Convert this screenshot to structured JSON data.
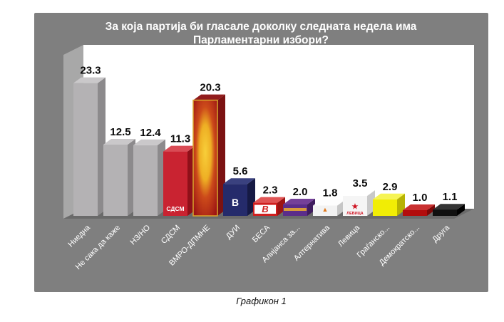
{
  "page": {
    "caption": "Графикон 1"
  },
  "chart_data": {
    "type": "bar",
    "style": "3d-column-survey",
    "title": "За која партија би гласале доколку следната недела има Парламентарни избори?",
    "title_lines": [
      "За која партија би гласале доколку следната недела има",
      "Парламентарни избори?"
    ],
    "categories": [
      "Ниедна",
      "Не сака да каже",
      "НЗ/НО",
      "СДСМ",
      "ВМРО-ДПМНЕ",
      "ДУИ",
      "БЕСА",
      "Алијанса за...",
      "Алтернатива",
      "Левица",
      "Граѓанско...",
      "Демократско...",
      "Друга"
    ],
    "values": [
      23.3,
      12.5,
      12.4,
      11.3,
      20.3,
      5.6,
      2.3,
      2.0,
      1.8,
      3.5,
      2.9,
      1.0,
      1.1
    ],
    "ylim": [
      0,
      25
    ],
    "legend": "none",
    "gridlines": "off",
    "value_labels_shown": true,
    "colors": {
      "panel_background": "#7f7f7f",
      "plot_back_wall": "#ffffff",
      "plot_side_wall": "#a8a8a8",
      "plot_floor": "#6a6a6a",
      "title_text": "#ffffff",
      "value_label_text": "#0a0a0a",
      "category_label_text": "#ffffff",
      "caption_text": "#111111"
    },
    "bar_styles": [
      {
        "party": "Ниедна",
        "front": "#b4b2b4",
        "side": "#8c8a8c",
        "top": "#cac8ca"
      },
      {
        "party": "Не сака да каже",
        "front": "#b4b2b4",
        "side": "#8c8a8c",
        "top": "#cac8ca"
      },
      {
        "party": "НЗ/НО",
        "front": "#b4b2b4",
        "side": "#8c8a8c",
        "top": "#cac8ca"
      },
      {
        "party": "СДСМ",
        "front": "#c92331",
        "side": "#8f1019",
        "top": "#d94b55",
        "logo_text": "СДСМ",
        "logo_color": "#ffffff",
        "logo_size": 8.5,
        "logo_dy": 7
      },
      {
        "party": "ВМРО-ДПМНЕ",
        "front": "vmro",
        "side": "#7c1212",
        "top": "#911c1c",
        "border": "#d9a62b"
      },
      {
        "party": "ДУИ",
        "front": "#252b6b",
        "side": "#161a44",
        "top": "#3a417f",
        "logo_text": "B",
        "logo_color": "#ffffff",
        "logo_size": 14,
        "logo_dy": 14
      },
      {
        "party": "БЕСА",
        "front": "#cf1f1f",
        "side": "#9c1515",
        "top": "#e05555",
        "panel": "#ffffff",
        "logo_text": "B",
        "logo_color": "#cf1f1f",
        "logo_size": 13,
        "logo_italic": true,
        "logo_dy": 5
      },
      {
        "party": "Алијанса за...",
        "front": "#5b2d8a",
        "side": "#3f1c5e",
        "top": "#744099",
        "stripe": "#d79a3c"
      },
      {
        "party": "Алтернатива",
        "front": "#f2f2f2",
        "side": "#c6c6c6",
        "top": "#fdfdfd",
        "logo_text": "▲",
        "logo_color": "#e0791e",
        "logo_size": 9,
        "logo_dy": 6
      },
      {
        "party": "Левица",
        "front": "#f5f5f5",
        "side": "#c9c9c9",
        "top": "#ffffff",
        "logo_text": "★",
        "logo_color": "#cf1322",
        "logo_size": 10,
        "logo_dy": 10,
        "logo_text2": "ЛЕВИЦА"
      },
      {
        "party": "Граѓанско...",
        "front": "#f1ed05",
        "side": "#b7b303",
        "top": "#f6f454"
      },
      {
        "party": "Демократско...",
        "front": "#b20d0d",
        "side": "#7c0808",
        "top": "#c93030"
      },
      {
        "party": "Друга",
        "front": "#101010",
        "side": "#000000",
        "top": "#343434"
      }
    ]
  }
}
